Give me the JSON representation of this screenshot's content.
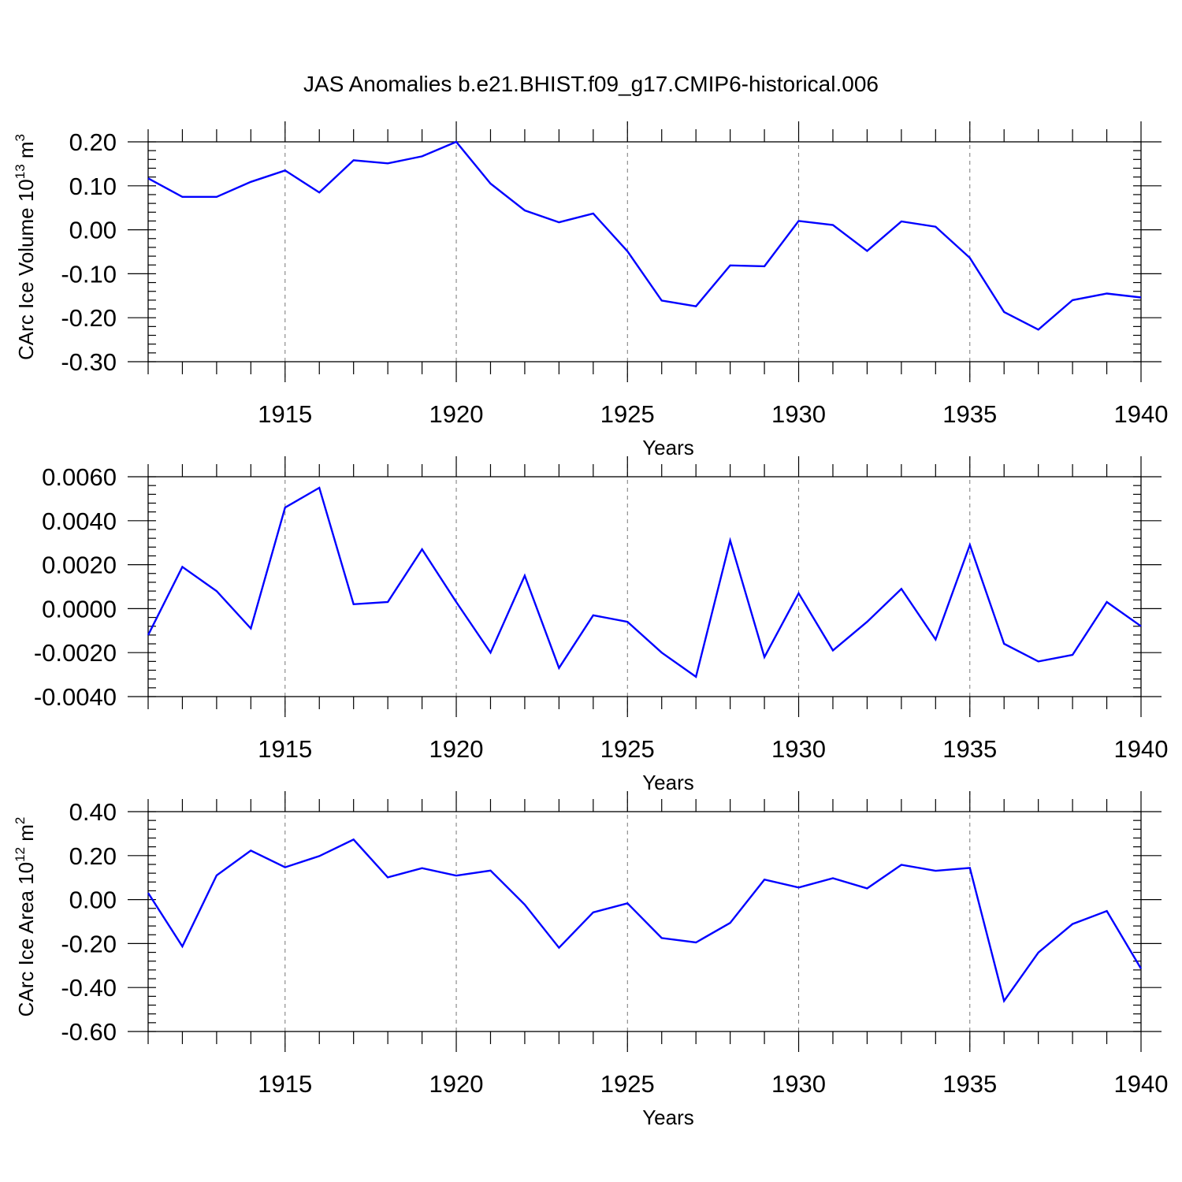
{
  "figure": {
    "title": "JAS Anomalies b.e21.BHIST.f09_g17.CMIP6-historical.006"
  },
  "line_color": "#0000ff",
  "chart_data": [
    {
      "type": "line",
      "title": "",
      "xlabel": "Years",
      "ylabel": "CArc Ice Volume 10",
      "ylabel_exponent": "13",
      "ylabel_unit": "m",
      "ylabel_unit_exponent": "3",
      "xlim": [
        1911,
        1940
      ],
      "ylim": [
        -0.3,
        0.2
      ],
      "yticks": [
        0.2,
        0.1,
        0.0,
        -0.1,
        -0.2,
        -0.3
      ],
      "ytick_labels": [
        "0.20",
        "0.10",
        "0.00",
        "-0.10",
        "-0.20",
        "-0.30"
      ],
      "xticks": [
        1915,
        1920,
        1925,
        1930,
        1935,
        1940
      ],
      "xtick_labels": [
        "1915",
        "1920",
        "1925",
        "1930",
        "1935",
        "1940"
      ],
      "grid": "vertical dashed at labeled years",
      "x": [
        1911,
        1912,
        1913,
        1914,
        1915,
        1916,
        1917,
        1918,
        1919,
        1920,
        1921,
        1922,
        1923,
        1924,
        1925,
        1926,
        1927,
        1928,
        1929,
        1930,
        1931,
        1932,
        1933,
        1934,
        1935,
        1936,
        1937,
        1938,
        1939,
        1940
      ],
      "series": [
        {
          "values": [
            0.117,
            0.075,
            0.075,
            0.109,
            0.135,
            0.085,
            0.158,
            0.151,
            0.167,
            0.2,
            0.105,
            0.044,
            0.017,
            0.037,
            -0.049,
            -0.161,
            -0.174,
            -0.081,
            -0.083,
            0.02,
            0.011,
            -0.048,
            0.019,
            0.007,
            -0.064,
            -0.187,
            -0.227,
            -0.16,
            -0.145,
            -0.154
          ]
        }
      ]
    },
    {
      "type": "line",
      "title": "",
      "xlabel": "Years",
      "ylabel": "",
      "xlim": [
        1911,
        1940
      ],
      "ylim": [
        -0.004,
        0.006
      ],
      "yticks": [
        0.006,
        0.004,
        0.002,
        0.0,
        -0.002,
        -0.004
      ],
      "ytick_labels": [
        "0.0060",
        "0.0040",
        "0.0020",
        "0.0000",
        "-0.0020",
        "-0.0040"
      ],
      "xticks": [
        1915,
        1920,
        1925,
        1930,
        1935,
        1940
      ],
      "xtick_labels": [
        "1915",
        "1920",
        "1925",
        "1930",
        "1935",
        "1940"
      ],
      "grid": "vertical dashed at labeled years",
      "x": [
        1911,
        1912,
        1913,
        1914,
        1915,
        1916,
        1917,
        1918,
        1919,
        1920,
        1921,
        1922,
        1923,
        1924,
        1925,
        1926,
        1927,
        1928,
        1929,
        1930,
        1931,
        1932,
        1933,
        1934,
        1935,
        1936,
        1937,
        1938,
        1939,
        1940
      ],
      "series": [
        {
          "values": [
            -0.0012,
            0.0019,
            0.0008,
            -0.0009,
            0.0046,
            0.0055,
            0.0002,
            0.0003,
            0.0027,
            0.0003,
            -0.002,
            0.0015,
            -0.0027,
            -0.0003,
            -0.0006,
            -0.002,
            -0.0031,
            0.0031,
            -0.0022,
            0.0007,
            -0.0019,
            -0.0006,
            0.0009,
            -0.0014,
            0.0029,
            -0.0016,
            -0.0024,
            -0.0021,
            0.0003,
            -0.0008
          ]
        }
      ]
    },
    {
      "type": "line",
      "title": "",
      "xlabel": "Years",
      "ylabel": "CArc Ice Area 10",
      "ylabel_exponent": "12",
      "ylabel_unit": "m",
      "ylabel_unit_exponent": "2",
      "xlim": [
        1911,
        1940
      ],
      "ylim": [
        -0.6,
        0.4
      ],
      "yticks": [
        0.4,
        0.2,
        0.0,
        -0.2,
        -0.4,
        -0.6
      ],
      "ytick_labels": [
        "0.40",
        "0.20",
        "0.00",
        "-0.20",
        "-0.40",
        "-0.60"
      ],
      "xticks": [
        1915,
        1920,
        1925,
        1930,
        1935,
        1940
      ],
      "xtick_labels": [
        "1915",
        "1920",
        "1925",
        "1930",
        "1935",
        "1940"
      ],
      "grid": "vertical dashed at labeled years",
      "x": [
        1911,
        1912,
        1913,
        1914,
        1915,
        1916,
        1917,
        1918,
        1919,
        1920,
        1921,
        1922,
        1923,
        1924,
        1925,
        1926,
        1927,
        1928,
        1929,
        1930,
        1931,
        1932,
        1933,
        1934,
        1935,
        1936,
        1937,
        1938,
        1939,
        1940
      ],
      "series": [
        {
          "values": [
            0.03,
            -0.213,
            0.11,
            0.223,
            0.147,
            0.198,
            0.273,
            0.101,
            0.143,
            0.109,
            0.132,
            -0.023,
            -0.219,
            -0.058,
            -0.017,
            -0.175,
            -0.195,
            -0.106,
            0.091,
            0.055,
            0.097,
            0.051,
            0.158,
            0.131,
            0.144,
            -0.461,
            -0.241,
            -0.111,
            -0.052,
            -0.314
          ]
        }
      ]
    }
  ]
}
